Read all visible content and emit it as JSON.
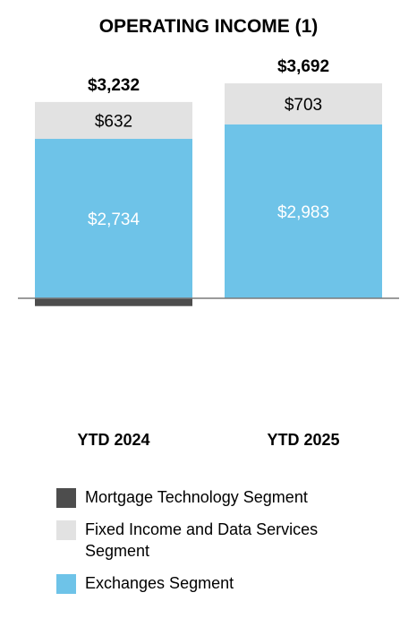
{
  "chart_data": {
    "type": "bar",
    "stacked": true,
    "title": "OPERATING INCOME (1)",
    "categories": [
      "YTD 2024",
      "YTD 2025"
    ],
    "series": [
      {
        "name": "Mortgage Technology Segment",
        "values": [
          -134,
          6
        ],
        "color": "#4d4d4d",
        "data_labels": [
          "",
          ""
        ]
      },
      {
        "name": "Fixed Income and Data Services Segment",
        "values": [
          632,
          703
        ],
        "color": "#e2e2e2",
        "data_labels": [
          "$632",
          "$703"
        ],
        "label_color": "#000000"
      },
      {
        "name": "Exchanges Segment",
        "values": [
          2734,
          2983
        ],
        "color": "#6ec3e8",
        "data_labels": [
          "$2,734",
          "$2,983"
        ],
        "label_color": "#ffffff"
      }
    ],
    "totals": [
      3232,
      3692
    ],
    "total_labels": [
      "$3,232",
      "$3,692"
    ],
    "stack_order": [
      "Exchanges Segment",
      "Fixed Income and Data Services Segment"
    ],
    "grid": false,
    "legend_position": "bottom-left"
  },
  "legend": [
    {
      "text": "Mortgage Technology Segment",
      "color": "#4d4d4d"
    },
    {
      "text": "Fixed Income and Data Services\n Segment",
      "color": "#e2e2e2"
    },
    {
      "text": "Exchanges Segment",
      "color": "#6ec3e8"
    }
  ]
}
